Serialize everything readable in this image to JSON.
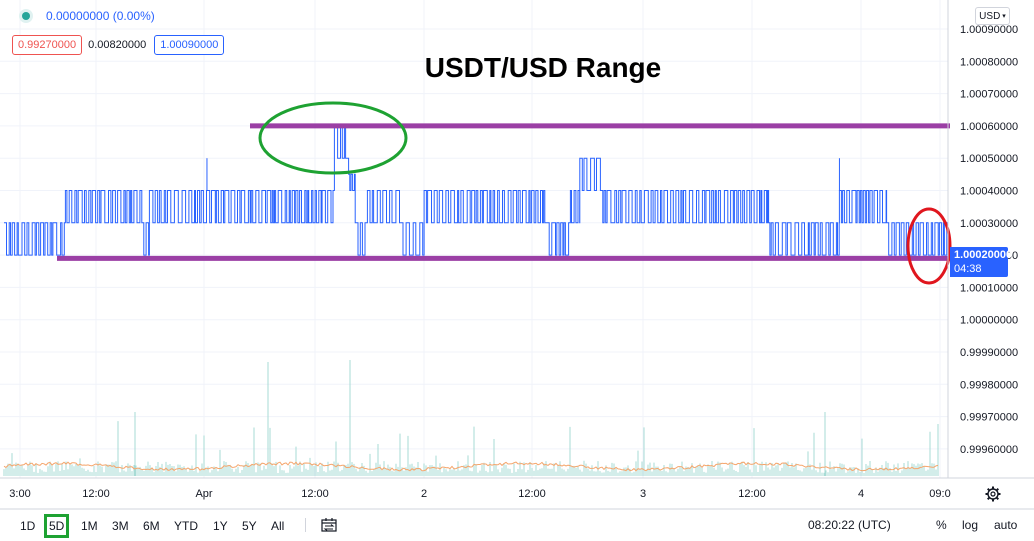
{
  "header": {
    "change": "0.00000000 (0.00%)",
    "open": "0.99270000",
    "high": "0.00820000",
    "close": "1.00090000"
  },
  "currency": "USD",
  "last_price": {
    "value": "1.00020000",
    "countdown": "04:38"
  },
  "toolbar": {
    "ranges": [
      "1D",
      "5D",
      "1M",
      "3M",
      "6M",
      "YTD",
      "1Y",
      "5Y",
      "All"
    ],
    "active_range": "5D",
    "clock": "08:20:22 (UTC)",
    "options": [
      "%",
      "log",
      "auto"
    ]
  },
  "icons": {
    "settings": "gear-icon",
    "compare": "compare-icon",
    "currency": "chevron-down-icon"
  },
  "colors": {
    "series": "#2962ff",
    "range_lines": "#9b3fa5",
    "highlight_green": "#1ea232",
    "highlight_red": "#e0161e",
    "volume": "#a7dbd5",
    "volume_ma": "#f5a56b",
    "price_tag": "#2962ff"
  },
  "chart_data": {
    "type": "line",
    "title": "USDT/USD Range",
    "x_ticks": [
      "3:00",
      "12:00",
      "Apr",
      "12:00",
      "2",
      "12:00",
      "3",
      "12:00",
      "4",
      "09:0"
    ],
    "ylim": [
      0.99952,
      1.0009
    ],
    "y_ticks": [
      "1.00090000",
      "1.00080000",
      "1.00070000",
      "1.00060000",
      "1.00050000",
      "1.00040000",
      "1.00030000",
      "1.00020000",
      "1.00010000",
      "1.00000000",
      "0.99990000",
      "0.99980000",
      "0.99970000",
      "0.99960000"
    ],
    "y_tick_values": [
      1.0009,
      1.0008,
      1.0007,
      1.0006,
      1.0005,
      1.0004,
      1.0003,
      1.0002,
      1.0001,
      1.0,
      0.9999,
      0.9998,
      0.9997,
      0.9996
    ],
    "grid": true,
    "series": [
      {
        "segments": [
          {
            "t": [
              0,
              0.065
            ],
            "levels": [
              1.0002,
              1.0003
            ]
          },
          {
            "t": [
              0.065,
              0.105
            ],
            "levels": [
              1.0003,
              1.0004
            ]
          },
          {
            "t": [
              0.105,
              0.146
            ],
            "levels": [
              1.0003,
              1.0004
            ]
          },
          {
            "t": [
              0.146,
              0.154
            ],
            "levels": [
              1.0002,
              1.0003
            ]
          },
          {
            "t": [
              0.154,
              0.35
            ],
            "levels": [
              1.0003,
              1.0004
            ]
          },
          {
            "t": [
              0.35,
              0.365
            ],
            "levels": [
              1.0005,
              1.0006
            ]
          },
          {
            "t": [
              0.365,
              0.372
            ],
            "levels": [
              1.0004,
              1.00045
            ]
          },
          {
            "t": [
              0.372,
              0.385
            ],
            "levels": [
              1.0002,
              1.0003
            ]
          },
          {
            "t": [
              0.385,
              0.42
            ],
            "levels": [
              1.0003,
              1.0004
            ]
          },
          {
            "t": [
              0.42,
              0.445
            ],
            "levels": [
              1.0002,
              1.0003
            ]
          },
          {
            "t": [
              0.445,
              0.575
            ],
            "levels": [
              1.0003,
              1.0004
            ]
          },
          {
            "t": [
              0.575,
              0.6
            ],
            "levels": [
              1.0002,
              1.0003
            ]
          },
          {
            "t": [
              0.6,
              0.61
            ],
            "levels": [
              1.0003,
              1.0004
            ]
          },
          {
            "t": [
              0.61,
              0.632
            ],
            "levels": [
              1.0004,
              1.0005
            ]
          },
          {
            "t": [
              0.632,
              0.64
            ],
            "levels": [
              1.0003,
              1.0004
            ]
          },
          {
            "t": [
              0.64,
              0.81
            ],
            "levels": [
              1.0003,
              1.0004
            ]
          },
          {
            "t": [
              0.81,
              0.83
            ],
            "levels": [
              1.0002,
              1.0003
            ]
          },
          {
            "t": [
              0.83,
              0.885
            ],
            "levels": [
              1.0002,
              1.0003
            ]
          },
          {
            "t": [
              0.885,
              0.935
            ],
            "levels": [
              1.0003,
              1.0004
            ]
          },
          {
            "t": [
              0.935,
              1.0
            ],
            "levels": [
              1.0002,
              1.0003
            ]
          }
        ],
        "spikes": [
          {
            "t": 0.215,
            "value": 1.0005
          },
          {
            "t": 0.885,
            "value": 1.0005
          }
        ]
      }
    ],
    "range_lines": [
      1.0006,
      1.00019
    ],
    "annotations": [
      {
        "shape": "ellipse",
        "color": "green",
        "t": 0.36,
        "value": 1.00056
      },
      {
        "shape": "ellipse",
        "color": "red",
        "t": 0.985,
        "value": 1.0002
      }
    ]
  }
}
